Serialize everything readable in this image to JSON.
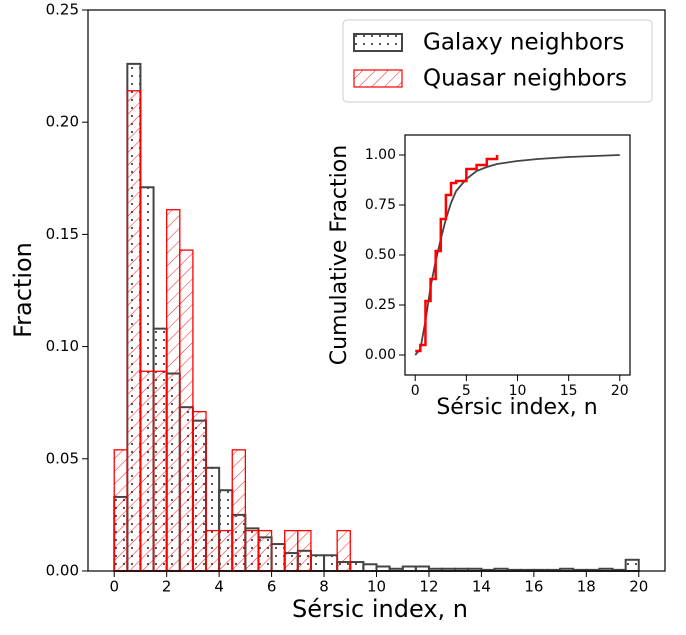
{
  "chart_data": [
    {
      "type": "histogram",
      "xlabel": "Sérsic index, n",
      "ylabel": "Fraction",
      "bins": [
        0,
        0.5,
        1,
        1.5,
        2,
        2.5,
        3,
        3.5,
        4,
        4.5,
        5,
        5.5,
        6,
        6.5,
        7,
        7.5,
        8,
        8.5,
        9,
        9.5,
        10,
        10.5,
        11,
        11.5,
        12,
        12.5,
        13,
        13.5,
        14,
        14.5,
        15,
        15.5,
        16,
        16.5,
        17,
        17.5,
        18,
        18.5,
        19,
        19.5,
        20
      ],
      "series": [
        {
          "name": "Galaxy neighbors",
          "color": "#444444",
          "hatch": "dots",
          "values": [
            0.033,
            0.226,
            0.171,
            0.108,
            0.088,
            0.073,
            0.067,
            0.046,
            0.036,
            0.025,
            0.019,
            0.015,
            0.012,
            0.008,
            0.009,
            0.007,
            0.007,
            0.004,
            0.004,
            0.003,
            0.002,
            0.001,
            0.002,
            0.002,
            0.001,
            0.001,
            0.001,
            0.001,
            0.0005,
            0.001,
            0.0005,
            0.0005,
            0.0005,
            0.0005,
            0.001,
            0.0005,
            0.0005,
            0.001,
            0.0005,
            0.005
          ]
        },
        {
          "name": "Quasar neighbors",
          "color": "#ff0000",
          "hatch": "diagonal",
          "values": [
            0.054,
            0.214,
            0.089,
            0.089,
            0.161,
            0.143,
            0.071,
            0.018,
            0.018,
            0.054,
            0.018,
            0.018,
            0,
            0.018,
            0.018,
            0,
            0,
            0.018,
            0,
            0,
            0,
            0,
            0,
            0,
            0,
            0,
            0,
            0,
            0,
            0,
            0,
            0,
            0,
            0,
            0,
            0,
            0,
            0,
            0,
            0
          ]
        }
      ],
      "xlim": [
        -1,
        21
      ],
      "xticks": [
        0,
        2,
        4,
        6,
        8,
        10,
        12,
        14,
        16,
        18,
        20
      ],
      "ylim": [
        0,
        0.25
      ],
      "yticks": [
        {
          "value": 0,
          "label": "0.00"
        },
        {
          "value": 0.05,
          "label": "0.05"
        },
        {
          "value": 0.1,
          "label": "0.10"
        },
        {
          "value": 0.15,
          "label": "0.15"
        },
        {
          "value": 0.2,
          "label": "0.20"
        },
        {
          "value": 0.25,
          "label": "0.25"
        }
      ],
      "legend": "upper right"
    },
    {
      "type": "line",
      "xlabel": "Sérsic index, n",
      "ylabel": "Cumulative Fraction",
      "series": [
        {
          "color": "#444444",
          "step": false,
          "x": [
            0,
            0.5,
            1,
            1.5,
            2,
            2.5,
            3,
            3.5,
            4,
            5,
            6,
            7,
            8,
            10,
            12,
            15,
            20
          ],
          "values": [
            0,
            0.03,
            0.17,
            0.34,
            0.47,
            0.58,
            0.68,
            0.76,
            0.82,
            0.88,
            0.92,
            0.94,
            0.955,
            0.97,
            0.98,
            0.99,
            1.0
          ]
        },
        {
          "color": "#ff0000",
          "step": true,
          "x": [
            0,
            0.5,
            1,
            1.5,
            2,
            2.5,
            3,
            3.5,
            4,
            5,
            6,
            7,
            8
          ],
          "values": [
            0.02,
            0.05,
            0.27,
            0.38,
            0.52,
            0.68,
            0.8,
            0.86,
            0.87,
            0.93,
            0.95,
            0.98,
            1.0
          ]
        }
      ],
      "xlim": [
        -1,
        21
      ],
      "xticks": [
        0,
        5,
        10,
        15,
        20
      ],
      "ylim": [
        -0.1,
        1.1
      ],
      "yticks": [
        {
          "value": 0,
          "label": "0.00"
        },
        {
          "value": 0.25,
          "label": "0.25"
        },
        {
          "value": 0.5,
          "label": "0.50"
        },
        {
          "value": 0.75,
          "label": "0.75"
        },
        {
          "value": 1,
          "label": "1.00"
        }
      ]
    }
  ]
}
